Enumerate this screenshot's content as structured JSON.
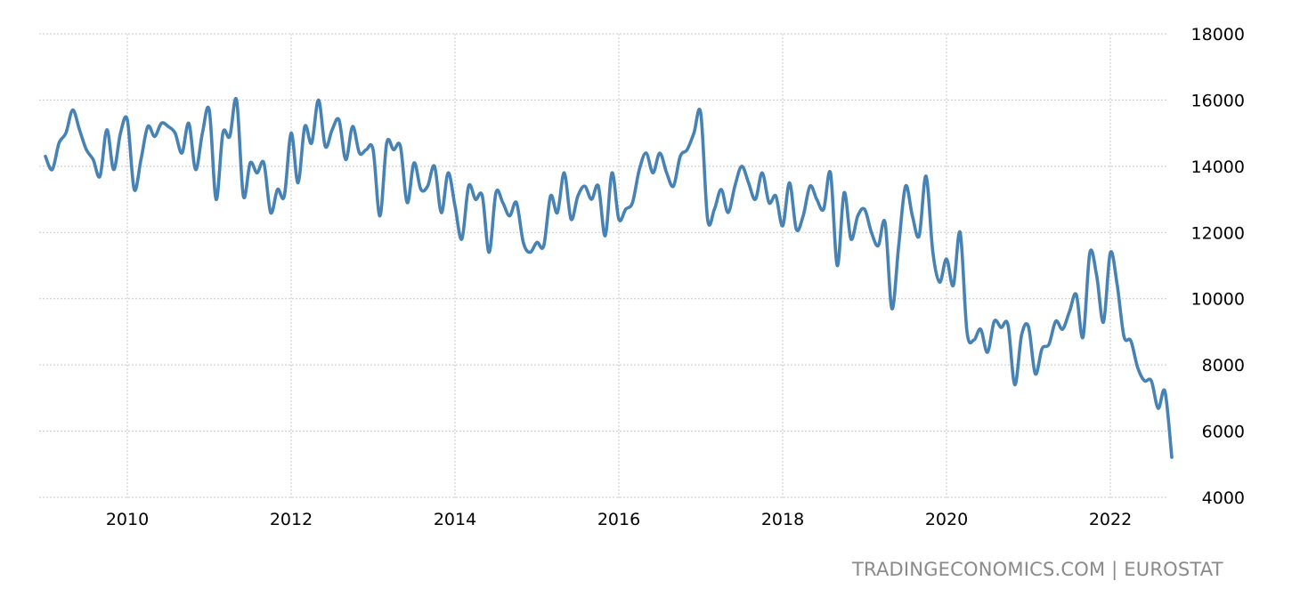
{
  "chart_data": {
    "type": "line",
    "title": "",
    "xlabel": "",
    "ylabel": "",
    "x_start": "2009-01",
    "x_end": "2022-10",
    "frequency": "monthly",
    "ylim": [
      4000,
      18000
    ],
    "yticks": [
      "4000",
      "6000",
      "8000",
      "10000",
      "12000",
      "14000",
      "16000",
      "18000"
    ],
    "xticks": [
      "2010",
      "2012",
      "2014",
      "2016",
      "2018",
      "2020",
      "2022"
    ],
    "grid": true,
    "legend": "none",
    "y_axis_side": "right",
    "line_color": "#4682b4",
    "series": [
      {
        "values": [
          14300,
          13900,
          14700,
          15000,
          15700,
          15100,
          14500,
          14200,
          13700,
          15100,
          13900,
          15000,
          15400,
          13300,
          14200,
          15200,
          14900,
          15300,
          15200,
          15000,
          14400,
          15300,
          13900,
          15000,
          15700,
          13000,
          15000,
          14900,
          16000,
          13100,
          14100,
          13800,
          14100,
          12600,
          13300,
          13100,
          15000,
          13500,
          15200,
          14700,
          16000,
          14600,
          15100,
          15400,
          14200,
          15200,
          14400,
          14500,
          14500,
          12500,
          14700,
          14500,
          14600,
          12900,
          14100,
          13300,
          13400,
          14000,
          12600,
          13800,
          12800,
          11800,
          13400,
          13000,
          13100,
          11400,
          13200,
          12900,
          12500,
          12900,
          11700,
          11400,
          11700,
          11600,
          13100,
          12600,
          13800,
          12400,
          13100,
          13400,
          13000,
          13400,
          11900,
          13800,
          12400,
          12700,
          12900,
          13900,
          14400,
          13800,
          14400,
          13800,
          13400,
          14300,
          14500,
          15000,
          15600,
          12400,
          12700,
          13300,
          12600,
          13400,
          14000,
          13500,
          13000,
          13800,
          12900,
          13100,
          12200,
          13500,
          12100,
          12500,
          13400,
          13000,
          12700,
          13800,
          11000,
          13200,
          11800,
          12500,
          12700,
          12000,
          11600,
          12300,
          9700,
          11600,
          13400,
          12500,
          11900,
          13700,
          11400,
          10500,
          11200,
          10400,
          12000,
          9000,
          8750,
          9080,
          8380,
          9320,
          9130,
          9210,
          7400,
          8900,
          9160,
          7730,
          8490,
          8620,
          9320,
          9080,
          9600,
          10130,
          8840,
          11390,
          10690,
          9290,
          11390,
          10420,
          8860,
          8730,
          7920,
          7520,
          7520,
          6690,
          7200,
          5210
        ]
      }
    ]
  },
  "credit": "TRADINGECONOMICS.COM | EUROSTAT"
}
